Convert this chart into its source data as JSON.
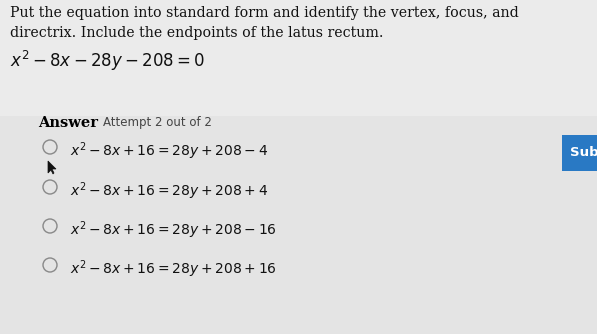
{
  "bg_color": "#e8e8e8",
  "panel_color": "#f0f0f0",
  "title_line1": "Put the equation into standard form and identify the vertex, focus, and",
  "title_line2": "directrix. Include the endpoints of the latus rectum.",
  "title_eq": "$x^2 - 8x - 28y - 208 = 0$",
  "answer_label": "Answer",
  "attempt_label": "Attempt 2 out of 2",
  "options": [
    "$x^2 - 8x + 16 = 28y + 208 - 4$",
    "$x^2 - 8x + 16 = 28y + 208 + 4$",
    "$x^2 - 8x + 16 = 28y + 208 - 16$",
    "$x^2 - 8x + 16 = 28y + 208 + 16$"
  ],
  "sub_button_color": "#2979c4",
  "sub_button_text": "Sub",
  "sub_button_text_color": "#ffffff",
  "radio_color": "#888888",
  "text_color": "#111111",
  "answer_color": "#000000",
  "option_text_color": "#111111",
  "title_fontsize": 10.2,
  "eq_fontsize": 12.0,
  "answer_fontsize": 10.5,
  "attempt_fontsize": 8.5,
  "option_fontsize": 10.0
}
